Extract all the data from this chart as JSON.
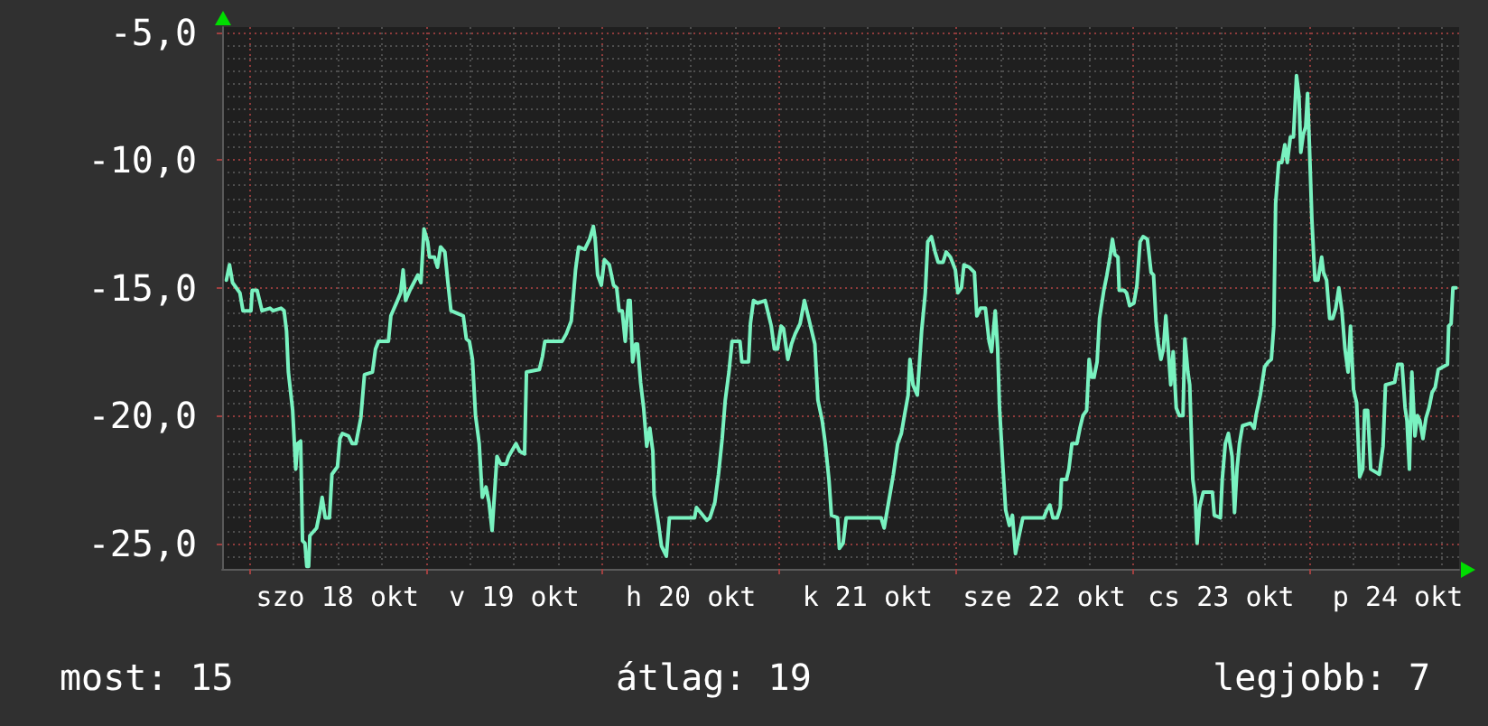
{
  "chart_data": {
    "type": "line",
    "annotations": [
      "most: 15",
      "átlag: 19",
      "legjobb: 7"
    ],
    "x": [
      "--10-17T20:55",
      "--10-17T21:20",
      "--10-17T21:45",
      "--10-17T22:45",
      "--10-17T23:10",
      "--10-18T00:15",
      "--10-18T00:25",
      "--10-18T01:05",
      "--10-18T01:45",
      "--10-18T02:50",
      "--10-18T03:15",
      "--10-18T04:20",
      "--10-18T04:45",
      "--10-18T05:05",
      "--10-18T05:20",
      "--10-18T05:55",
      "--10-18T06:20",
      "--10-18T06:35",
      "--10-18T07:00",
      "--10-18T07:15",
      "--10-18T07:35",
      "--10-18T07:50",
      "--10-18T08:05",
      "--10-18T08:15",
      "--10-18T09:10",
      "--10-18T09:35",
      "--10-18T09:55",
      "--10-18T10:20",
      "--10-18T10:55",
      "--10-18T11:15",
      "--10-18T12:00",
      "--10-18T12:20",
      "--10-18T12:40",
      "--10-18T13:30",
      "--10-18T14:00",
      "--10-18T14:30",
      "--10-18T15:10",
      "--10-18T15:40",
      "--10-18T16:45",
      "--10-18T17:10",
      "--10-18T17:35",
      "--10-18T18:55",
      "--10-18T19:15",
      "--10-18T20:00",
      "--10-18T20:35",
      "--10-18T20:55",
      "--10-18T21:15",
      "--10-18T21:50",
      "--10-18T22:55",
      "--10-18T23:20",
      "--10-18T23:45",
      "--10-19T00:15",
      "--10-19T00:30",
      "--10-19T01:10",
      "--10-19T01:35",
      "--10-19T02:00",
      "--10-19T02:35",
      "--10-19T03:00",
      "--10-19T03:25",
      "--10-19T05:05",
      "--10-19T05:30",
      "--10-19T05:55",
      "--10-19T06:20",
      "--10-19T06:45",
      "--10-19T07:15",
      "--10-19T07:40",
      "--10-19T08:10",
      "--10-19T08:35",
      "--10-19T09:00",
      "--10-19T09:15",
      "--10-19T09:40",
      "--10-19T10:10",
      "--10-19T10:55",
      "--10-19T11:15",
      "--10-19T12:15",
      "--10-19T12:45",
      "--10-19T13:25",
      "--10-19T13:40",
      "--10-19T15:25",
      "--10-19T15:50",
      "--10-19T16:10",
      "--10-19T18:30",
      "--10-19T19:05",
      "--10-19T19:45",
      "--10-19T20:20",
      "--10-19T20:45",
      "--10-19T21:35",
      "--10-19T22:15",
      "--10-19T22:45",
      "--10-19T23:00",
      "--10-19T23:20",
      "--10-19T23:50",
      "--10-20T00:15",
      "--10-20T00:55",
      "--10-20T01:30",
      "--10-20T01:55",
      "--10-20T02:15",
      "--10-20T02:40",
      "--10-20T03:05",
      "--10-20T03:30",
      "--10-20T03:45",
      "--10-20T04:05",
      "--10-20T04:30",
      "--10-20T04:45",
      "--10-20T05:10",
      "--10-20T05:35",
      "--10-20T06:00",
      "--10-20T06:25",
      "--10-20T06:50",
      "--10-20T07:00",
      "--10-20T07:35",
      "--10-20T08:00",
      "--10-20T08:40",
      "--10-20T09:05",
      "--10-20T12:30",
      "--10-20T12:45",
      "--10-20T13:20",
      "--10-20T14:10",
      "--10-20T14:35",
      "--10-20T15:15",
      "--10-20T15:45",
      "--10-20T16:15",
      "--10-20T16:40",
      "--10-20T17:10",
      "--10-20T17:35",
      "--10-20T18:40",
      "--10-20T18:55",
      "--10-20T19:50",
      "--10-20T20:05",
      "--10-20T20:30",
      "--10-20T21:05",
      "--10-20T22:05",
      "--10-20T22:25",
      "--10-20T22:55",
      "--10-20T23:20",
      "--10-20T23:45",
      "--10-21T00:15",
      "--10-21T00:35",
      "--10-21T01:10",
      "--10-21T01:40",
      "--10-21T02:10",
      "--10-21T02:50",
      "--10-21T03:25",
      "--10-21T03:45",
      "--10-21T04:15",
      "--10-21T04:50",
      "--10-21T05:15",
      "--10-21T05:50",
      "--10-21T06:15",
      "--10-21T06:45",
      "--10-21T07:05",
      "--10-21T07:55",
      "--10-21T08:10",
      "--10-21T08:40",
      "--10-21T09:05",
      "--10-21T13:50",
      "--10-21T14:15",
      "--10-21T14:40",
      "--10-21T15:05",
      "--10-21T15:30",
      "--10-21T16:05",
      "--10-21T16:35",
      "--10-21T17:00",
      "--10-21T17:30",
      "--10-21T17:45",
      "--10-21T18:10",
      "--10-21T18:45",
      "--10-21T19:20",
      "--10-21T19:50",
      "--10-21T20:10",
      "--10-21T20:40",
      "--10-21T21:10",
      "--10-21T21:35",
      "--10-21T22:15",
      "--10-21T22:40",
      "--10-21T23:15",
      "--10-21T23:55",
      "--10-22T00:15",
      "--10-22T00:45",
      "--10-22T01:05",
      "--10-22T01:50",
      "--10-22T02:30",
      "--10-22T02:50",
      "--10-22T03:20",
      "--10-22T04:00",
      "--10-22T04:30",
      "--10-22T04:50",
      "--10-22T05:20",
      "--10-22T05:40",
      "--10-22T05:55",
      "--10-22T06:25",
      "--10-22T06:45",
      "--10-22T07:15",
      "--10-22T07:40",
      "--10-22T08:05",
      "--10-22T08:30",
      "--10-22T09:05",
      "--10-22T11:55",
      "--10-22T12:20",
      "--10-22T12:45",
      "--10-22T13:10",
      "--10-22T13:45",
      "--10-22T14:10",
      "--10-22T14:20",
      "--10-22T15:00",
      "--10-22T15:20",
      "--10-22T15:45",
      "--10-22T16:25",
      "--10-22T16:50",
      "--10-22T17:15",
      "--10-22T17:45",
      "--10-22T18:05",
      "--10-22T18:25",
      "--10-22T18:45",
      "--10-22T19:10",
      "--10-22T19:30",
      "--10-22T20:05",
      "--10-22T20:30",
      "--10-22T20:55",
      "--10-22T21:15",
      "--10-22T21:35",
      "--10-22T22:00",
      "--10-22T22:10",
      "--10-22T22:50",
      "--10-22T23:10",
      "--10-22T23:35",
      "--10-23T00:10",
      "--10-23T00:35",
      "--10-23T01:00",
      "--10-23T01:25",
      "--10-23T02:00",
      "--10-23T02:30",
      "--10-23T02:50",
      "--10-23T03:10",
      "--10-23T03:30",
      "--10-23T03:50",
      "--10-23T04:10",
      "--10-23T04:30",
      "--10-23T04:50",
      "--10-23T05:10",
      "--10-23T05:30",
      "--10-23T05:55",
      "--10-23T06:20",
      "--10-23T06:50",
      "--10-23T07:05",
      "--10-23T07:30",
      "--10-23T07:45",
      "--10-23T08:10",
      "--10-23T08:30",
      "--10-23T08:45",
      "--10-23T09:05",
      "--10-23T09:35",
      "--10-23T10:50",
      "--10-23T11:05",
      "--10-23T11:55",
      "--10-23T12:10",
      "--10-23T12:35",
      "--10-23T13:00",
      "--10-23T13:30",
      "--10-23T13:50",
      "--10-23T14:10",
      "--10-23T14:30",
      "--10-23T14:55",
      "--10-23T16:00",
      "--10-23T16:30",
      "--10-23T16:45",
      "--10-23T17:20",
      "--10-23T17:55",
      "--10-23T18:25",
      "--10-23T18:50",
      "--10-23T19:10",
      "--10-23T19:25",
      "--10-23T19:50",
      "--10-23T20:15",
      "--10-23T20:40",
      "--10-23T21:00",
      "--10-23T21:25",
      "--10-23T21:50",
      "--10-23T22:15",
      "--10-23T22:35",
      "--10-23T22:50",
      "--10-23T23:10",
      "--10-23T23:30",
      "--10-23T23:45",
      "--10-24T00:00",
      "--10-24T00:20",
      "--10-24T00:45",
      "--10-24T01:10",
      "--10-24T01:40",
      "--10-24T01:55",
      "--10-24T02:20",
      "--10-24T02:45",
      "--10-24T03:10",
      "--10-24T03:35",
      "--10-24T04:00",
      "--10-24T04:25",
      "--10-24T04:50",
      "--10-24T05:15",
      "--10-24T05:35",
      "--10-24T06:00",
      "--10-24T06:25",
      "--10-24T06:50",
      "--10-24T07:15",
      "--10-24T07:30",
      "--10-24T07:55",
      "--10-24T08:20",
      "--10-24T09:30",
      "--10-24T10:00",
      "--10-24T10:20",
      "--10-24T11:35",
      "--10-24T12:00",
      "--10-24T12:35",
      "--10-24T13:00",
      "--10-24T13:15",
      "--10-24T13:35",
      "--10-24T13:55",
      "--10-24T14:20",
      "--10-24T14:40",
      "--10-24T15:00",
      "--10-24T15:25",
      "--10-24T15:50",
      "--10-24T16:15",
      "--10-24T16:40",
      "--10-24T17:05",
      "--10-24T17:30",
      "--10-24T18:45",
      "--10-24T18:55",
      "--10-24T19:15",
      "--10-24T19:30",
      "--10-24T19:55"
    ],
    "values": [
      -14.7,
      -14.1,
      -14.8,
      -15.2,
      -15.9,
      -15.9,
      -15.1,
      -15.1,
      -15.9,
      -15.8,
      -15.9,
      -15.8,
      -15.9,
      -16.7,
      -18.3,
      -19.8,
      -22.1,
      -21.1,
      -21.0,
      -24.9,
      -25.0,
      -25.9,
      -25.9,
      -24.7,
      -24.4,
      -23.8,
      -23.2,
      -24.0,
      -24.0,
      -22.3,
      -22.0,
      -20.9,
      -20.7,
      -20.8,
      -21.1,
      -21.1,
      -20.1,
      -18.4,
      -18.3,
      -17.4,
      -17.1,
      -17.1,
      -16.1,
      -15.6,
      -15.2,
      -14.3,
      -15.5,
      -15.1,
      -14.5,
      -14.8,
      -12.7,
      -13.2,
      -13.8,
      -13.8,
      -14.2,
      -13.4,
      -13.6,
      -14.8,
      -15.9,
      -16.1,
      -17.0,
      -17.1,
      -17.8,
      -20.0,
      -21.1,
      -23.2,
      -22.8,
      -23.4,
      -24.5,
      -23.4,
      -21.6,
      -21.9,
      -21.9,
      -21.6,
      -21.1,
      -21.4,
      -21.5,
      -18.3,
      -18.2,
      -17.7,
      -17.1,
      -17.1,
      -16.8,
      -16.3,
      -14.3,
      -13.4,
      -13.5,
      -13.1,
      -12.6,
      -13.1,
      -14.5,
      -14.9,
      -13.9,
      -14.1,
      -14.9,
      -15.0,
      -15.9,
      -15.9,
      -17.1,
      -15.5,
      -15.5,
      -17.9,
      -17.2,
      -17.2,
      -18.7,
      -19.7,
      -21.2,
      -20.5,
      -21.4,
      -23.1,
      -24.2,
      -25.1,
      -25.5,
      -24.0,
      -24.0,
      -23.6,
      -23.8,
      -24.1,
      -24.0,
      -23.4,
      -22.3,
      -20.9,
      -19.4,
      -18.3,
      -17.1,
      -17.1,
      -17.9,
      -17.9,
      -16.4,
      -15.5,
      -15.6,
      -15.5,
      -15.9,
      -16.5,
      -17.4,
      -17.4,
      -16.5,
      -16.6,
      -17.8,
      -17.2,
      -16.8,
      -16.4,
      -15.5,
      -15.9,
      -16.5,
      -17.2,
      -19.4,
      -20.2,
      -21.1,
      -22.5,
      -23.9,
      -24.0,
      -25.2,
      -25.0,
      -24.0,
      -24.0,
      -24.4,
      -23.7,
      -23.0,
      -22.3,
      -21.1,
      -20.7,
      -20.0,
      -19.2,
      -17.8,
      -18.8,
      -19.2,
      -16.7,
      -15.2,
      -13.2,
      -13.0,
      -13.6,
      -14.0,
      -14.0,
      -13.6,
      -13.8,
      -14.3,
      -15.2,
      -15.0,
      -14.1,
      -14.2,
      -14.4,
      -16.1,
      -15.8,
      -15.8,
      -17.1,
      -17.5,
      -15.9,
      -17.4,
      -19.7,
      -22.2,
      -23.7,
      -24.3,
      -23.9,
      -25.4,
      -24.8,
      -24.0,
      -24.0,
      -23.7,
      -23.5,
      -24.0,
      -24.0,
      -23.6,
      -22.5,
      -22.5,
      -22.1,
      -21.1,
      -21.1,
      -20.5,
      -20.0,
      -19.8,
      -17.8,
      -18.5,
      -18.5,
      -17.9,
      -16.2,
      -15.1,
      -14.5,
      -13.8,
      -13.1,
      -13.7,
      -13.8,
      -15.1,
      -15.1,
      -15.2,
      -15.7,
      -15.6,
      -14.9,
      -13.2,
      -13.0,
      -13.1,
      -14.4,
      -14.5,
      -16.3,
      -17.2,
      -17.8,
      -17.4,
      -16.1,
      -17.4,
      -18.8,
      -17.5,
      -19.7,
      -20.0,
      -20.0,
      -17.0,
      -18.3,
      -18.8,
      -22.5,
      -23.2,
      -25.0,
      -23.6,
      -23.0,
      -23.0,
      -23.9,
      -24.0,
      -22.5,
      -21.1,
      -20.7,
      -21.6,
      -23.8,
      -22.1,
      -21.1,
      -20.4,
      -20.3,
      -20.5,
      -20.0,
      -19.2,
      -18.1,
      -17.9,
      -17.8,
      -16.5,
      -11.7,
      -10.1,
      -10.1,
      -9.4,
      -10.1,
      -9.1,
      -9.1,
      -6.7,
      -7.5,
      -9.7,
      -9.0,
      -8.7,
      -7.4,
      -9.4,
      -12.3,
      -14.7,
      -14.7,
      -13.8,
      -14.4,
      -14.7,
      -16.2,
      -16.2,
      -15.8,
      -15.0,
      -15.9,
      -17.4,
      -18.3,
      -16.5,
      -19.0,
      -19.5,
      -22.4,
      -22.1,
      -19.8,
      -19.8,
      -22.1,
      -22.3,
      -21.2,
      -18.8,
      -18.7,
      -18.0,
      -18.0,
      -19.7,
      -20.2,
      -22.1,
      -18.3,
      -20.8,
      -20.0,
      -20.2,
      -20.9,
      -20.1,
      -19.7,
      -19.1,
      -18.9,
      -18.2,
      -18.0,
      -16.5,
      -16.4,
      -15.0,
      -15.0
    ],
    "color": "#79f2c0",
    "xlim": [
      "--10-17T20:20",
      "--10-24T20:20"
    ],
    "xticks": [
      {
        "value": "--10-18T00:00",
        "label": null
      },
      {
        "value": "--10-18T12:00",
        "label": "szo 18 okt"
      },
      {
        "value": "--10-19T00:00",
        "label": null
      },
      {
        "value": "--10-19T12:00",
        "label": "v 19 okt"
      },
      {
        "value": "--10-20T00:00",
        "label": null
      },
      {
        "value": "--10-20T12:00",
        "label": "h 20 okt"
      },
      {
        "value": "--10-21T00:00",
        "label": null
      },
      {
        "value": "--10-21T12:00",
        "label": "k 21 okt"
      },
      {
        "value": "--10-22T00:00",
        "label": null
      },
      {
        "value": "--10-22T12:00",
        "label": "sze 22 okt"
      },
      {
        "value": "--10-23T00:00",
        "label": null
      },
      {
        "value": "--10-23T12:00",
        "label": "cs 23 okt"
      },
      {
        "value": "--10-24T00:00",
        "label": null
      },
      {
        "value": "--10-24T12:00",
        "label": "p 24 okt"
      }
    ],
    "ylim": [
      -26,
      -4.8
    ],
    "yticks": [
      {
        "value": -5,
        "label": "-5,0"
      },
      {
        "value": -10,
        "label": "-10,0"
      },
      {
        "value": -15,
        "label": "-15,0"
      },
      {
        "value": -20,
        "label": "-20,0"
      },
      {
        "value": -25,
        "label": "-25,0"
      }
    ],
    "grid": true
  }
}
